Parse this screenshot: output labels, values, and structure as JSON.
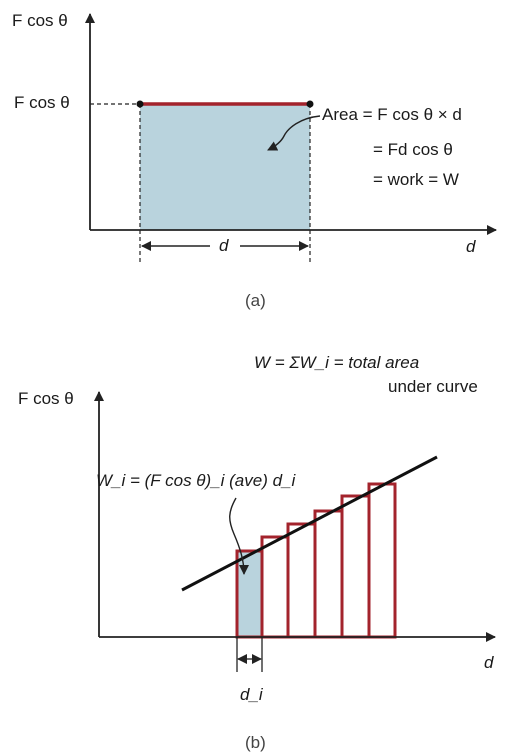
{
  "panel_a": {
    "y_axis_label": "F cos θ",
    "y_tick_label": "F cos θ",
    "x_axis_label": "d",
    "width_label": "d",
    "area_lines": [
      "Area  =  F cos θ × d",
      "=  Fd cos θ",
      "=   work = W"
    ],
    "caption": "(a)"
  },
  "panel_b": {
    "title_line1": "W = ΣW_i = total area",
    "title_line2": "under curve",
    "y_axis_label": "F cos θ",
    "x_axis_label": "d",
    "wi_label": "W_i = (F cos θ)_i (ave) d_i",
    "di_label": "d_i",
    "bar_count": 6,
    "caption": "(b)"
  },
  "colors": {
    "bar_outline": "#a3232c",
    "area_fill": "#b9d3dd",
    "axis": "#222222"
  }
}
